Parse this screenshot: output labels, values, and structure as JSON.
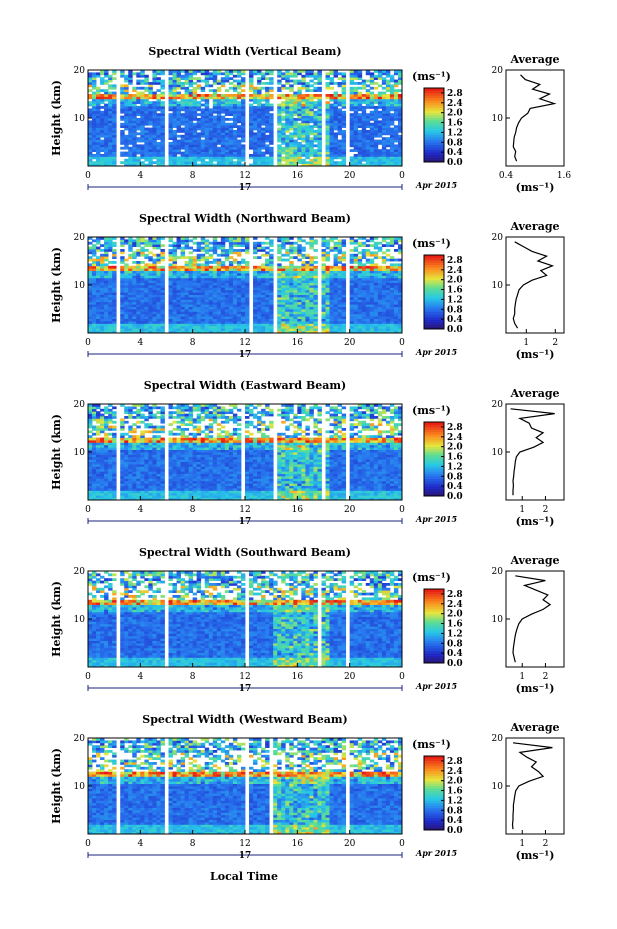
{
  "chart_data": [
    {
      "type": "heatmap",
      "title": "Spectral Width (Vertical Beam)",
      "ylabel": "Height (km)",
      "ylim": [
        0,
        20
      ],
      "yticks": [
        10,
        20
      ],
      "xlim": [
        0,
        24
      ],
      "xticks": [
        "0",
        "4",
        "8",
        "12",
        "16",
        "20",
        "0"
      ],
      "date_label": "17",
      "month_label": "Apr 2015",
      "colorbar": {
        "unit": "(ms⁻¹)",
        "ticks": [
          "2.8",
          "2.4",
          "2.0",
          "1.6",
          "1.2",
          "0.8",
          "0.4",
          "0.0"
        ],
        "range": [
          0,
          3.0
        ]
      },
      "tropopause_km": 14,
      "data_gaps_hours": [
        [
          2.2,
          2.55
        ],
        [
          5.7,
          6.0
        ],
        [
          12.05,
          12.2
        ],
        [
          14.1,
          14.35
        ],
        [
          17.7,
          18.0
        ],
        [
          19.7,
          19.9
        ]
      ],
      "average": {
        "title": "Average",
        "xticks": [
          "0.4",
          "1.6"
        ],
        "xlim": [
          0.4,
          1.6
        ],
        "unit": "(ms⁻¹)",
        "heights_km": [
          1,
          2,
          3,
          4,
          5,
          6,
          7,
          8,
          9,
          10,
          11,
          12,
          13,
          14,
          15,
          16,
          17,
          18,
          19
        ],
        "values": [
          0.62,
          0.58,
          0.6,
          0.55,
          0.56,
          0.57,
          0.6,
          0.62,
          0.66,
          0.72,
          0.85,
          0.9,
          1.4,
          1.1,
          1.3,
          0.95,
          1.1,
          0.8,
          0.7
        ]
      }
    },
    {
      "type": "heatmap",
      "title": "Spectral Width (Northward Beam)",
      "ylabel": "Height (km)",
      "ylim": [
        0,
        20
      ],
      "yticks": [
        10,
        20
      ],
      "xlim": [
        0,
        24
      ],
      "xticks": [
        "0",
        "4",
        "8",
        "12",
        "16",
        "20",
        "0"
      ],
      "date_label": "17",
      "month_label": "Apr 2015",
      "colorbar": {
        "unit": "(ms⁻¹)",
        "ticks": [
          "2.8",
          "2.4",
          "2.0",
          "1.6",
          "1.2",
          "0.8",
          "0.4",
          "0.0"
        ],
        "range": [
          0,
          3.0
        ]
      },
      "tropopause_km": 13,
      "data_gaps_hours": [
        [
          2.25,
          2.6
        ],
        [
          5.75,
          6.05
        ],
        [
          12.4,
          12.5
        ],
        [
          14.1,
          14.35
        ],
        [
          17.65,
          17.9
        ],
        [
          19.75,
          19.95
        ]
      ],
      "average": {
        "title": "Average",
        "xticks": [
          "1",
          "2"
        ],
        "xlim": [
          0.3,
          2.3
        ],
        "unit": "(ms⁻¹)",
        "heights_km": [
          1,
          2,
          3,
          4,
          5,
          6,
          7,
          8,
          9,
          10,
          11,
          12,
          13,
          14,
          15,
          16,
          17,
          18,
          19
        ],
        "values": [
          0.7,
          0.6,
          0.55,
          0.6,
          0.6,
          0.62,
          0.65,
          0.7,
          0.75,
          0.9,
          1.2,
          1.7,
          1.5,
          1.9,
          1.4,
          1.7,
          1.2,
          0.9,
          0.6
        ]
      }
    },
    {
      "type": "heatmap",
      "title": "Spectral Width (Eastward Beam)",
      "ylabel": "Height (km)",
      "ylim": [
        0,
        20
      ],
      "yticks": [
        10,
        20
      ],
      "xlim": [
        0,
        24
      ],
      "xticks": [
        "0",
        "4",
        "8",
        "12",
        "16",
        "20",
        "0"
      ],
      "date_label": "17",
      "month_label": "Apr 2015",
      "colorbar": {
        "unit": "(ms⁻¹)",
        "ticks": [
          "2.8",
          "2.4",
          "2.0",
          "1.6",
          "1.2",
          "0.8",
          "0.4",
          "0.0"
        ],
        "range": [
          0,
          3.0
        ]
      },
      "tropopause_km": 12,
      "data_gaps_hours": [
        [
          2.3,
          2.6
        ],
        [
          5.75,
          6.05
        ],
        [
          11.8,
          11.95
        ],
        [
          14.1,
          14.35
        ],
        [
          18.0,
          18.2
        ],
        [
          19.75,
          19.95
        ]
      ],
      "average": {
        "title": "Average",
        "xticks": [
          "1",
          "2"
        ],
        "xlim": [
          0.3,
          2.8
        ],
        "unit": "(ms⁻¹)",
        "heights_km": [
          1,
          2,
          3,
          4,
          5,
          6,
          7,
          8,
          9,
          10,
          11,
          12,
          13,
          14,
          15,
          16,
          17,
          18,
          19
        ],
        "values": [
          0.6,
          0.6,
          0.62,
          0.6,
          0.63,
          0.65,
          0.68,
          0.7,
          0.75,
          0.9,
          1.5,
          1.9,
          1.6,
          1.9,
          1.4,
          1.3,
          0.9,
          2.4,
          0.5
        ]
      }
    },
    {
      "type": "heatmap",
      "title": "Spectral Width (Southward Beam)",
      "ylabel": "Height (km)",
      "ylim": [
        0,
        20
      ],
      "yticks": [
        10,
        20
      ],
      "xlim": [
        0,
        24
      ],
      "xticks": [
        "0",
        "4",
        "8",
        "12",
        "16",
        "20",
        "0"
      ],
      "date_label": "17",
      "month_label": "Apr 2015",
      "colorbar": {
        "unit": "(ms⁻¹)",
        "ticks": [
          "2.8",
          "2.4",
          "2.0",
          "1.6",
          "1.2",
          "0.8",
          "0.4",
          "0.0"
        ],
        "range": [
          0,
          3.0
        ]
      },
      "tropopause_km": 13,
      "data_gaps_hours": [
        [
          2.25,
          2.55
        ],
        [
          5.7,
          6.0
        ],
        [
          12.1,
          12.2
        ],
        [
          14.05,
          14.3
        ],
        [
          17.65,
          17.9
        ],
        [
          19.7,
          19.95
        ]
      ],
      "average": {
        "title": "Average",
        "xticks": [
          "1",
          "2"
        ],
        "xlim": [
          0.3,
          2.8
        ],
        "unit": "(ms⁻¹)",
        "heights_km": [
          1,
          2,
          3,
          4,
          5,
          6,
          7,
          8,
          9,
          10,
          11,
          12,
          13,
          14,
          15,
          16,
          17,
          18,
          19
        ],
        "values": [
          0.7,
          0.65,
          0.6,
          0.62,
          0.65,
          0.68,
          0.72,
          0.78,
          0.85,
          1.0,
          1.4,
          1.9,
          2.2,
          1.9,
          2.1,
          1.6,
          1.1,
          2.0,
          0.7
        ]
      }
    },
    {
      "type": "heatmap",
      "title": "Spectral Width (Westward Beam)",
      "ylabel": "Height (km)",
      "ylim": [
        0,
        20
      ],
      "yticks": [
        10,
        20
      ],
      "xlim": [
        0,
        24
      ],
      "xticks": [
        "0",
        "4",
        "8",
        "12",
        "16",
        "20",
        "0"
      ],
      "date_label": "17",
      "month_label": "Apr 2015",
      "colorbar": {
        "unit": "(ms⁻¹)",
        "ticks": [
          "2.8",
          "2.4",
          "2.0",
          "1.6",
          "1.2",
          "0.8",
          "0.4",
          "0.0"
        ],
        "range": [
          0,
          3.0
        ]
      },
      "tropopause_km": 12,
      "data_gaps_hours": [
        [
          2.25,
          2.55
        ],
        [
          5.75,
          6.05
        ],
        [
          12.05,
          12.2
        ],
        [
          14.0,
          14.25
        ],
        [
          17.7,
          17.95
        ],
        [
          19.75,
          19.95
        ]
      ],
      "average": {
        "title": "Average",
        "xticks": [
          "1",
          "2"
        ],
        "xlim": [
          0.3,
          2.8
        ],
        "unit": "(ms⁻¹)",
        "heights_km": [
          1,
          2,
          3,
          4,
          5,
          6,
          7,
          8,
          9,
          10,
          11,
          12,
          13,
          14,
          15,
          16,
          17,
          18,
          19
        ],
        "values": [
          0.6,
          0.58,
          0.6,
          0.6,
          0.62,
          0.62,
          0.65,
          0.68,
          0.72,
          0.85,
          1.3,
          1.9,
          1.7,
          1.4,
          1.6,
          1.2,
          0.9,
          2.3,
          0.6
        ]
      }
    }
  ],
  "footer": {
    "xlabel": "Local Time"
  }
}
